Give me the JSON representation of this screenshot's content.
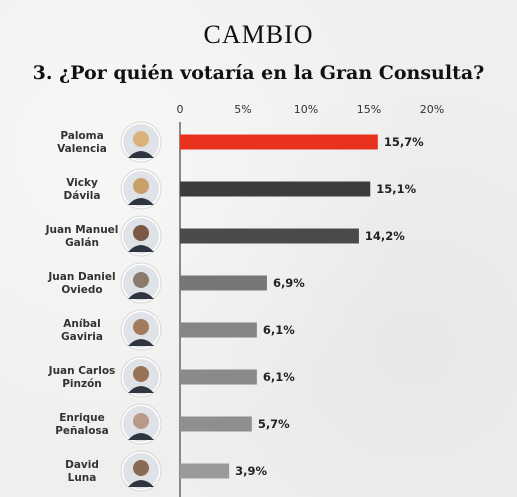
{
  "brand": "CAMBIO",
  "chart_data": {
    "type": "bar",
    "orientation": "horizontal",
    "title": "3. ¿Por quién votaría en la Gran Consulta?",
    "x_ticks": [
      "0",
      "5%",
      "10%",
      "15%",
      "20%"
    ],
    "xlim": [
      0,
      20
    ],
    "categories": [
      [
        "Paloma",
        "Valencia"
      ],
      [
        "Vicky",
        "Dávila"
      ],
      [
        "Juan Manuel",
        "Galán"
      ],
      [
        "Juan Daniel",
        "Oviedo"
      ],
      [
        "Aníbal",
        "Gaviria"
      ],
      [
        "Juan Carlos",
        "Pinzón"
      ],
      [
        "Enrique",
        "Peñalosa"
      ],
      [
        "David",
        "Luna"
      ]
    ],
    "values": [
      15.7,
      15.1,
      14.2,
      6.9,
      6.1,
      6.1,
      5.7,
      3.9
    ],
    "value_labels": [
      "15,7%",
      "15,1%",
      "14,2%",
      "6,9%",
      "6,1%",
      "6,1%",
      "5,7%",
      "3,9%"
    ],
    "highlight_color": "#e8321e",
    "highlight_label_color": "#d9261a",
    "bar_colors": [
      "#e8321e",
      "#3c3c3c",
      "#4a4a4a",
      "#777777",
      "#858585",
      "#8a8a8a",
      "#8f8f8f",
      "#9a9a9a"
    ],
    "avatar_colors": [
      "#d9b27a",
      "#c9a06a",
      "#7a5a44",
      "#8c7a6a",
      "#a27b5e",
      "#9a7256",
      "#b89a88",
      "#8a6a54"
    ]
  }
}
